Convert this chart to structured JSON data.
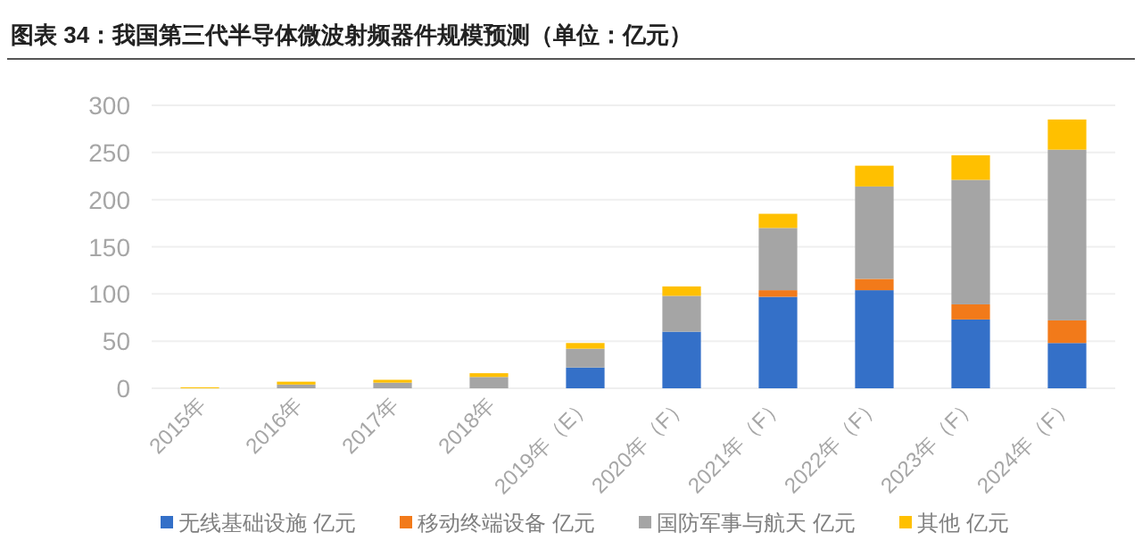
{
  "chart_data": {
    "type": "bar",
    "title": "图表 34：我国第三代半导体微波射频器件规模预测（单位：亿元）",
    "categories": [
      "2015年",
      "2016年",
      "2017年",
      "2018年",
      "2019年（E）",
      "2020年（F）",
      "2021年（F）",
      "2022年（F）",
      "2023年（F）",
      "2024年（F）"
    ],
    "stacked": true,
    "series": [
      {
        "name": "无线基础设施 亿元",
        "color": "#3470c8",
        "values": [
          0,
          0,
          0,
          0,
          22,
          60,
          97,
          104,
          73,
          48
        ]
      },
      {
        "name": "移动终端设备 亿元",
        "color": "#f27a1a",
        "values": [
          0,
          0,
          0,
          0,
          0,
          0,
          7,
          12,
          16,
          24
        ]
      },
      {
        "name": "国防军事与航天 亿元",
        "color": "#a5a5a5",
        "values": [
          null,
          4,
          6,
          12,
          20,
          38,
          66,
          98,
          132,
          181
        ]
      },
      {
        "name": "其他 亿元",
        "color": "#ffc000",
        "values": [
          1,
          3,
          3,
          4,
          6,
          10,
          15,
          22,
          26,
          32
        ]
      }
    ],
    "ylim": [
      0,
      300
    ],
    "yticks": [
      0,
      50,
      100,
      150,
      200,
      250,
      300
    ],
    "grid": "y",
    "legend": "bottom"
  }
}
